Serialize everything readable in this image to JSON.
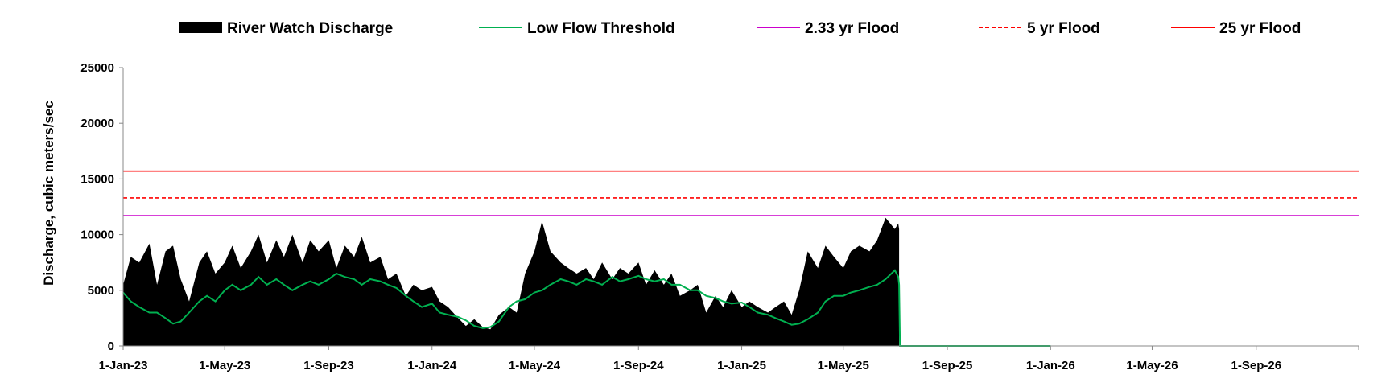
{
  "chart_data": {
    "type": "area",
    "xlabel": "",
    "ylabel": "Discharge, cubic meters/sec",
    "ylim": [
      0,
      25000
    ],
    "xlim": [
      "2023-01-01",
      "2026-12-31"
    ],
    "y_ticks": [
      "0",
      "5000",
      "10000",
      "15000",
      "20000",
      "25000"
    ],
    "x_ticks": [
      {
        "date": "2023-01-01",
        "label": "1-Jan-23"
      },
      {
        "date": "2023-05-01",
        "label": "1-May-23"
      },
      {
        "date": "2023-09-01",
        "label": "1-Sep-23"
      },
      {
        "date": "2024-01-01",
        "label": "1-Jan-24"
      },
      {
        "date": "2024-05-01",
        "label": "1-May-24"
      },
      {
        "date": "2024-09-01",
        "label": "1-Sep-24"
      },
      {
        "date": "2025-01-01",
        "label": "1-Jan-25"
      },
      {
        "date": "2025-05-01",
        "label": "1-May-25"
      },
      {
        "date": "2025-09-01",
        "label": "1-Sep-25"
      },
      {
        "date": "2026-01-01",
        "label": "1-Jan-26"
      },
      {
        "date": "2026-05-01",
        "label": "1-May-26"
      },
      {
        "date": "2026-09-01",
        "label": "1-Sep-26"
      }
    ],
    "grid": false,
    "legend_position": "top",
    "series": [
      {
        "name": "River Watch Discharge",
        "kind": "area",
        "color": "#000000",
        "x": [
          "2023-01-01",
          "2023-01-10",
          "2023-01-20",
          "2023-02-01",
          "2023-02-10",
          "2023-02-20",
          "2023-03-01",
          "2023-03-10",
          "2023-03-20",
          "2023-04-01",
          "2023-04-10",
          "2023-04-20",
          "2023-05-01",
          "2023-05-10",
          "2023-05-20",
          "2023-06-01",
          "2023-06-10",
          "2023-06-20",
          "2023-07-01",
          "2023-07-10",
          "2023-07-20",
          "2023-08-01",
          "2023-08-10",
          "2023-08-20",
          "2023-09-01",
          "2023-09-10",
          "2023-09-20",
          "2023-10-01",
          "2023-10-10",
          "2023-10-20",
          "2023-11-01",
          "2023-11-10",
          "2023-11-20",
          "2023-12-01",
          "2023-12-10",
          "2023-12-20",
          "2024-01-01",
          "2024-01-10",
          "2024-01-20",
          "2024-02-01",
          "2024-02-10",
          "2024-02-20",
          "2024-03-01",
          "2024-03-10",
          "2024-03-20",
          "2024-04-01",
          "2024-04-10",
          "2024-04-20",
          "2024-05-01",
          "2024-05-10",
          "2024-05-20",
          "2024-06-01",
          "2024-06-10",
          "2024-06-20",
          "2024-07-01",
          "2024-07-10",
          "2024-07-20",
          "2024-08-01",
          "2024-08-10",
          "2024-08-20",
          "2024-09-01",
          "2024-09-10",
          "2024-09-20",
          "2024-10-01",
          "2024-10-10",
          "2024-10-20",
          "2024-11-01",
          "2024-11-10",
          "2024-11-20",
          "2024-12-01",
          "2024-12-10",
          "2024-12-20",
          "2025-01-01",
          "2025-01-10",
          "2025-01-20",
          "2025-02-01",
          "2025-02-10",
          "2025-02-20",
          "2025-03-01",
          "2025-03-10",
          "2025-03-20",
          "2025-04-01",
          "2025-04-10",
          "2025-04-20",
          "2025-05-01",
          "2025-05-10",
          "2025-05-20",
          "2025-06-01",
          "2025-06-10",
          "2025-06-20",
          "2025-07-01",
          "2025-07-05",
          "2025-07-06"
        ],
        "y": [
          5500,
          8000,
          7500,
          9200,
          5500,
          8500,
          9000,
          6000,
          4000,
          7500,
          8500,
          6500,
          7500,
          9000,
          7000,
          8500,
          10000,
          7500,
          9500,
          8000,
          10000,
          7500,
          9500,
          8500,
          9500,
          7000,
          9000,
          8000,
          9800,
          7500,
          8000,
          6000,
          6500,
          4500,
          5500,
          5000,
          5300,
          4000,
          3500,
          2500,
          1800,
          2400,
          1700,
          1500,
          2800,
          3500,
          3000,
          6500,
          8500,
          11200,
          8500,
          7500,
          7000,
          6500,
          7000,
          6000,
          7500,
          6000,
          7000,
          6500,
          7500,
          5500,
          6800,
          5500,
          6500,
          4500,
          5000,
          5500,
          3000,
          4500,
          3500,
          5000,
          3500,
          4000,
          3500,
          3000,
          3500,
          4000,
          2800,
          5000,
          8500,
          7000,
          9000,
          8000,
          7000,
          8500,
          9000,
          8500,
          9500,
          11500,
          10500,
          11000,
          10500
        ]
      },
      {
        "name": "Low Flow Threshold",
        "kind": "line",
        "color": "#00b050",
        "x": [
          "2023-01-01",
          "2023-01-10",
          "2023-01-20",
          "2023-02-01",
          "2023-02-10",
          "2023-02-20",
          "2023-03-01",
          "2023-03-10",
          "2023-03-20",
          "2023-04-01",
          "2023-04-10",
          "2023-04-20",
          "2023-05-01",
          "2023-05-10",
          "2023-05-20",
          "2023-06-01",
          "2023-06-10",
          "2023-06-20",
          "2023-07-01",
          "2023-07-10",
          "2023-07-20",
          "2023-08-01",
          "2023-08-10",
          "2023-08-20",
          "2023-09-01",
          "2023-09-10",
          "2023-09-20",
          "2023-10-01",
          "2023-10-10",
          "2023-10-20",
          "2023-11-01",
          "2023-11-10",
          "2023-11-20",
          "2023-12-01",
          "2023-12-10",
          "2023-12-20",
          "2024-01-01",
          "2024-01-10",
          "2024-01-20",
          "2024-02-01",
          "2024-02-10",
          "2024-02-20",
          "2024-03-01",
          "2024-03-10",
          "2024-03-20",
          "2024-04-01",
          "2024-04-10",
          "2024-04-20",
          "2024-05-01",
          "2024-05-10",
          "2024-05-20",
          "2024-06-01",
          "2024-06-10",
          "2024-06-20",
          "2024-07-01",
          "2024-07-10",
          "2024-07-20",
          "2024-08-01",
          "2024-08-10",
          "2024-08-20",
          "2024-09-01",
          "2024-09-10",
          "2024-09-20",
          "2024-10-01",
          "2024-10-10",
          "2024-10-20",
          "2024-11-01",
          "2024-11-10",
          "2024-11-20",
          "2024-12-01",
          "2024-12-10",
          "2024-12-20",
          "2025-01-01",
          "2025-01-10",
          "2025-01-20",
          "2025-02-01",
          "2025-02-10",
          "2025-02-20",
          "2025-03-01",
          "2025-03-10",
          "2025-03-20",
          "2025-04-01",
          "2025-04-10",
          "2025-04-20",
          "2025-05-01",
          "2025-05-10",
          "2025-05-20",
          "2025-06-01",
          "2025-06-10",
          "2025-06-20",
          "2025-07-01",
          "2025-07-05",
          "2025-07-06",
          "2025-07-07",
          "2026-01-01"
        ],
        "y": [
          4800,
          4000,
          3500,
          3000,
          3000,
          2500,
          2000,
          2200,
          3000,
          4000,
          4500,
          4000,
          5000,
          5500,
          5000,
          5500,
          6200,
          5500,
          6000,
          5500,
          5000,
          5500,
          5800,
          5500,
          6000,
          6500,
          6200,
          6000,
          5500,
          6000,
          5800,
          5500,
          5200,
          4500,
          4000,
          3500,
          3800,
          3000,
          2800,
          2600,
          2300,
          1800,
          1600,
          1700,
          2200,
          3500,
          4000,
          4200,
          4800,
          5000,
          5500,
          6000,
          5800,
          5500,
          6000,
          5800,
          5500,
          6200,
          5800,
          6000,
          6300,
          6000,
          5800,
          6000,
          5500,
          5500,
          5000,
          5000,
          4500,
          4300,
          4000,
          3800,
          3900,
          3500,
          3000,
          2800,
          2500,
          2200,
          1900,
          2000,
          2400,
          3000,
          4000,
          4500,
          4500,
          4800,
          5000,
          5300,
          5500,
          6000,
          6800,
          6200,
          5500,
          0,
          0
        ]
      },
      {
        "name": "2.33 yr Flood",
        "kind": "hline",
        "color": "#cc00cc",
        "y": 11700
      },
      {
        "name": "5 yr Flood",
        "kind": "hline-dashed",
        "color": "#ff0000",
        "y": 13300
      },
      {
        "name": "25 yr Flood",
        "kind": "hline",
        "color": "#ff0000",
        "y": 15700
      }
    ]
  }
}
